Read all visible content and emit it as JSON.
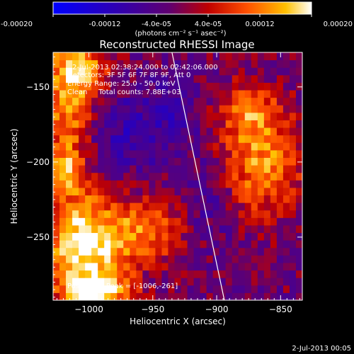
{
  "colorbar": {
    "tick_labels": [
      "-0.00020",
      "-0.00012",
      "-4.0e-05",
      "4.0e-05",
      "0.00012",
      "0.00020"
    ],
    "tick_values": [
      -0.0002,
      -0.00012,
      -4e-05,
      4e-05,
      0.00012,
      0.0002
    ],
    "range": [
      -0.0002,
      0.0002
    ],
    "unit_label": "(photons cm⁻² s⁻¹ asec⁻²)"
  },
  "title": "Reconstructed RHESSI Image",
  "annotations": {
    "time": "2-Jul-2013 02:38:24.000 to 02:42:06.000",
    "detectors": "Detectors: 3F 5F 6F 7F 8F 9F, Att 0",
    "energy": "Energy Range: 25.0 - 50.0 keV",
    "clean": "Clean     Total counts: 7.88E+03",
    "peak": "Position of Peak = [-1006,-261]"
  },
  "footer_date": "2-Jul-2013 00:05",
  "chart_data": {
    "type": "heatmap",
    "title": "Reconstructed RHESSI Image",
    "xlabel": "Heliocentric X (arcsec)",
    "ylabel": "Heliocentric Y (arcsec)",
    "xlim": [
      -1028,
      -833
    ],
    "ylim": [
      -292,
      -127
    ],
    "x_ticks": [
      -1000,
      -950,
      -900,
      -850
    ],
    "x_tick_labels": [
      "−1000",
      "−950",
      "−900",
      "−850"
    ],
    "y_ticks": [
      -250,
      -200,
      -150
    ],
    "y_tick_labels": [
      "−250",
      "−200",
      "−150"
    ],
    "value_range": [
      -0.0002,
      0.0002
    ],
    "colormap": "blue-purple-red-yellow-white",
    "grid": "off",
    "hot_regions": [
      {
        "x": -1015,
        "y": -158,
        "level": 0.00018,
        "sx": 16,
        "sy": 40
      },
      {
        "x": -1005,
        "y": -261,
        "level": 0.0002,
        "sx": 22,
        "sy": 26
      },
      {
        "x": -958,
        "y": -245,
        "level": 0.00012,
        "sx": 26,
        "sy": 16
      },
      {
        "x": -868,
        "y": -200,
        "level": 0.00015,
        "sx": 26,
        "sy": 24
      },
      {
        "x": -875,
        "y": -165,
        "level": 0.0001,
        "sx": 16,
        "sy": 12
      },
      {
        "x": -1000,
        "y": -138,
        "level": 8e-05,
        "sx": 14,
        "sy": 9
      },
      {
        "x": -1018,
        "y": -205,
        "level": 0.0001,
        "sx": 8,
        "sy": 10
      },
      {
        "x": -990,
        "y": -287,
        "level": 0.00014,
        "sx": 18,
        "sy": 8
      }
    ],
    "cold_regions": [
      {
        "x": -985,
        "y": -182,
        "level": -8e-05,
        "sx": 26,
        "sy": 20
      },
      {
        "x": -905,
        "y": -220,
        "level": -7e-05,
        "sx": 16,
        "sy": 26
      },
      {
        "x": -935,
        "y": -170,
        "level": -5e-05,
        "sx": 18,
        "sy": 18
      }
    ],
    "limb_line": [
      [
        -935,
        -127
      ],
      [
        -894,
        -292
      ]
    ]
  }
}
